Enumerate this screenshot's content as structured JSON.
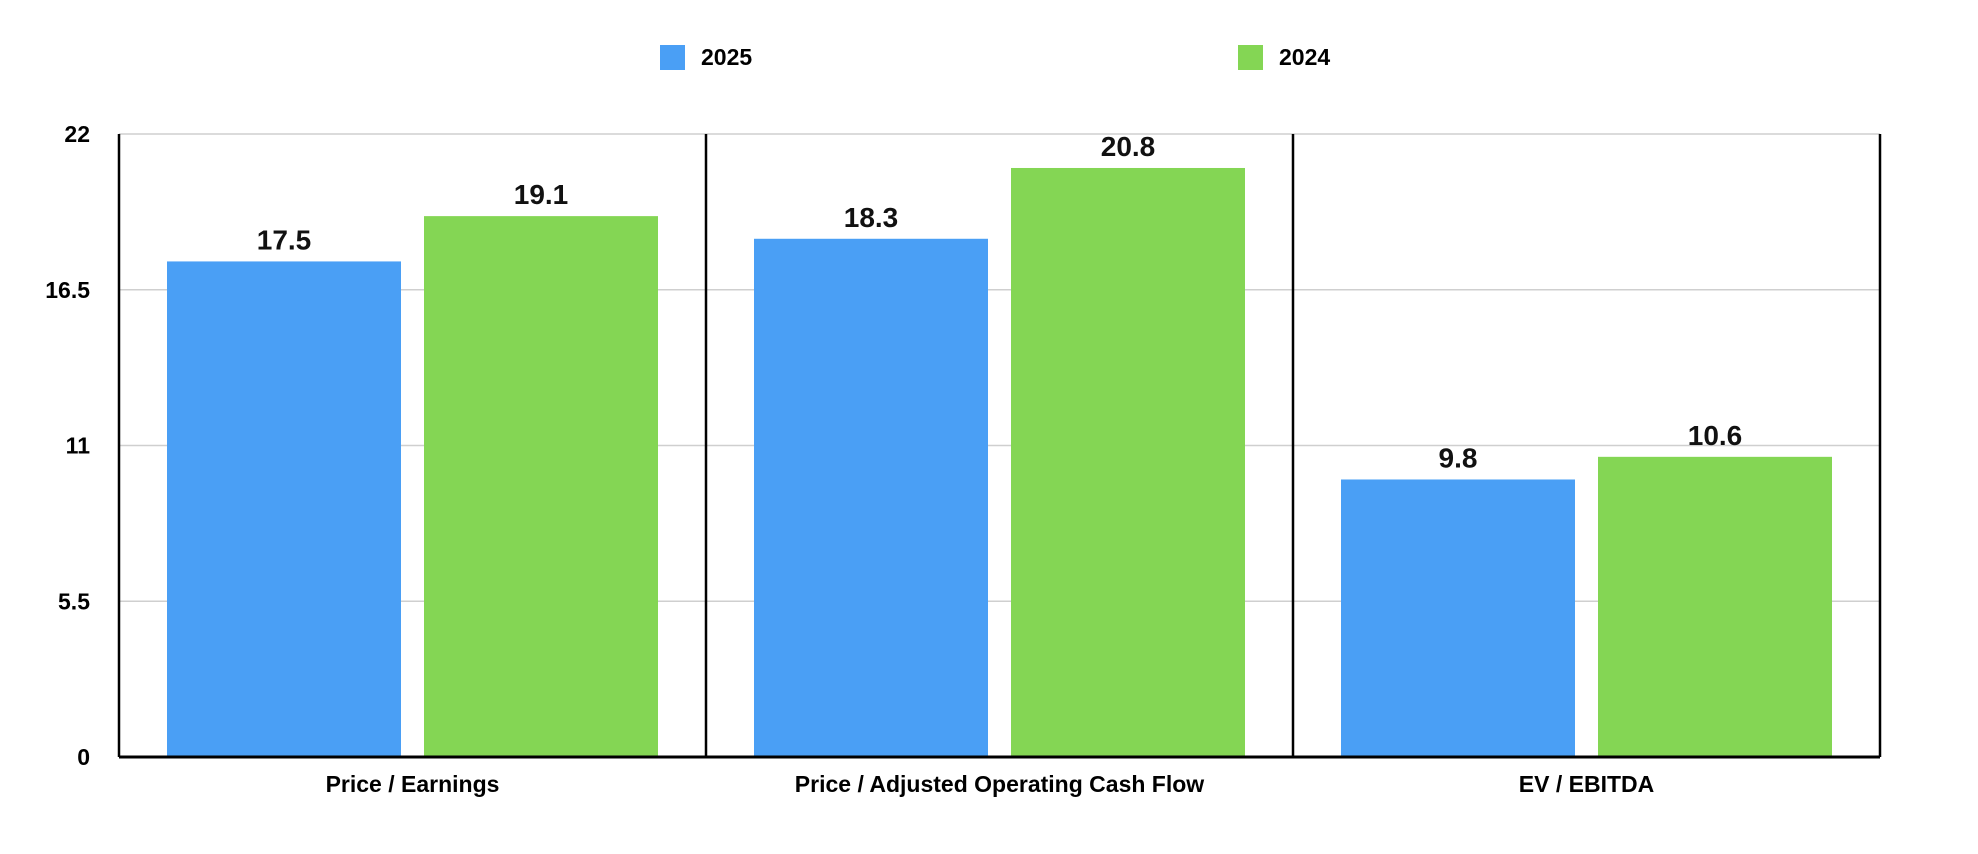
{
  "chart_data": {
    "type": "bar",
    "categories": [
      "Price / Earnings",
      "Price / Adjusted Operating Cash Flow",
      "EV / EBITDA"
    ],
    "series": [
      {
        "name": "2025",
        "color": "#4A9FF5",
        "values": [
          17.5,
          18.3,
          9.8
        ]
      },
      {
        "name": "2024",
        "color": "#84D654",
        "values": [
          19.1,
          20.8,
          10.6
        ]
      }
    ],
    "y_ticks": [
      "0",
      "5.5",
      "11",
      "16.5",
      "22"
    ],
    "ylim": [
      0,
      22
    ],
    "grid": true,
    "legend_position": "top"
  }
}
